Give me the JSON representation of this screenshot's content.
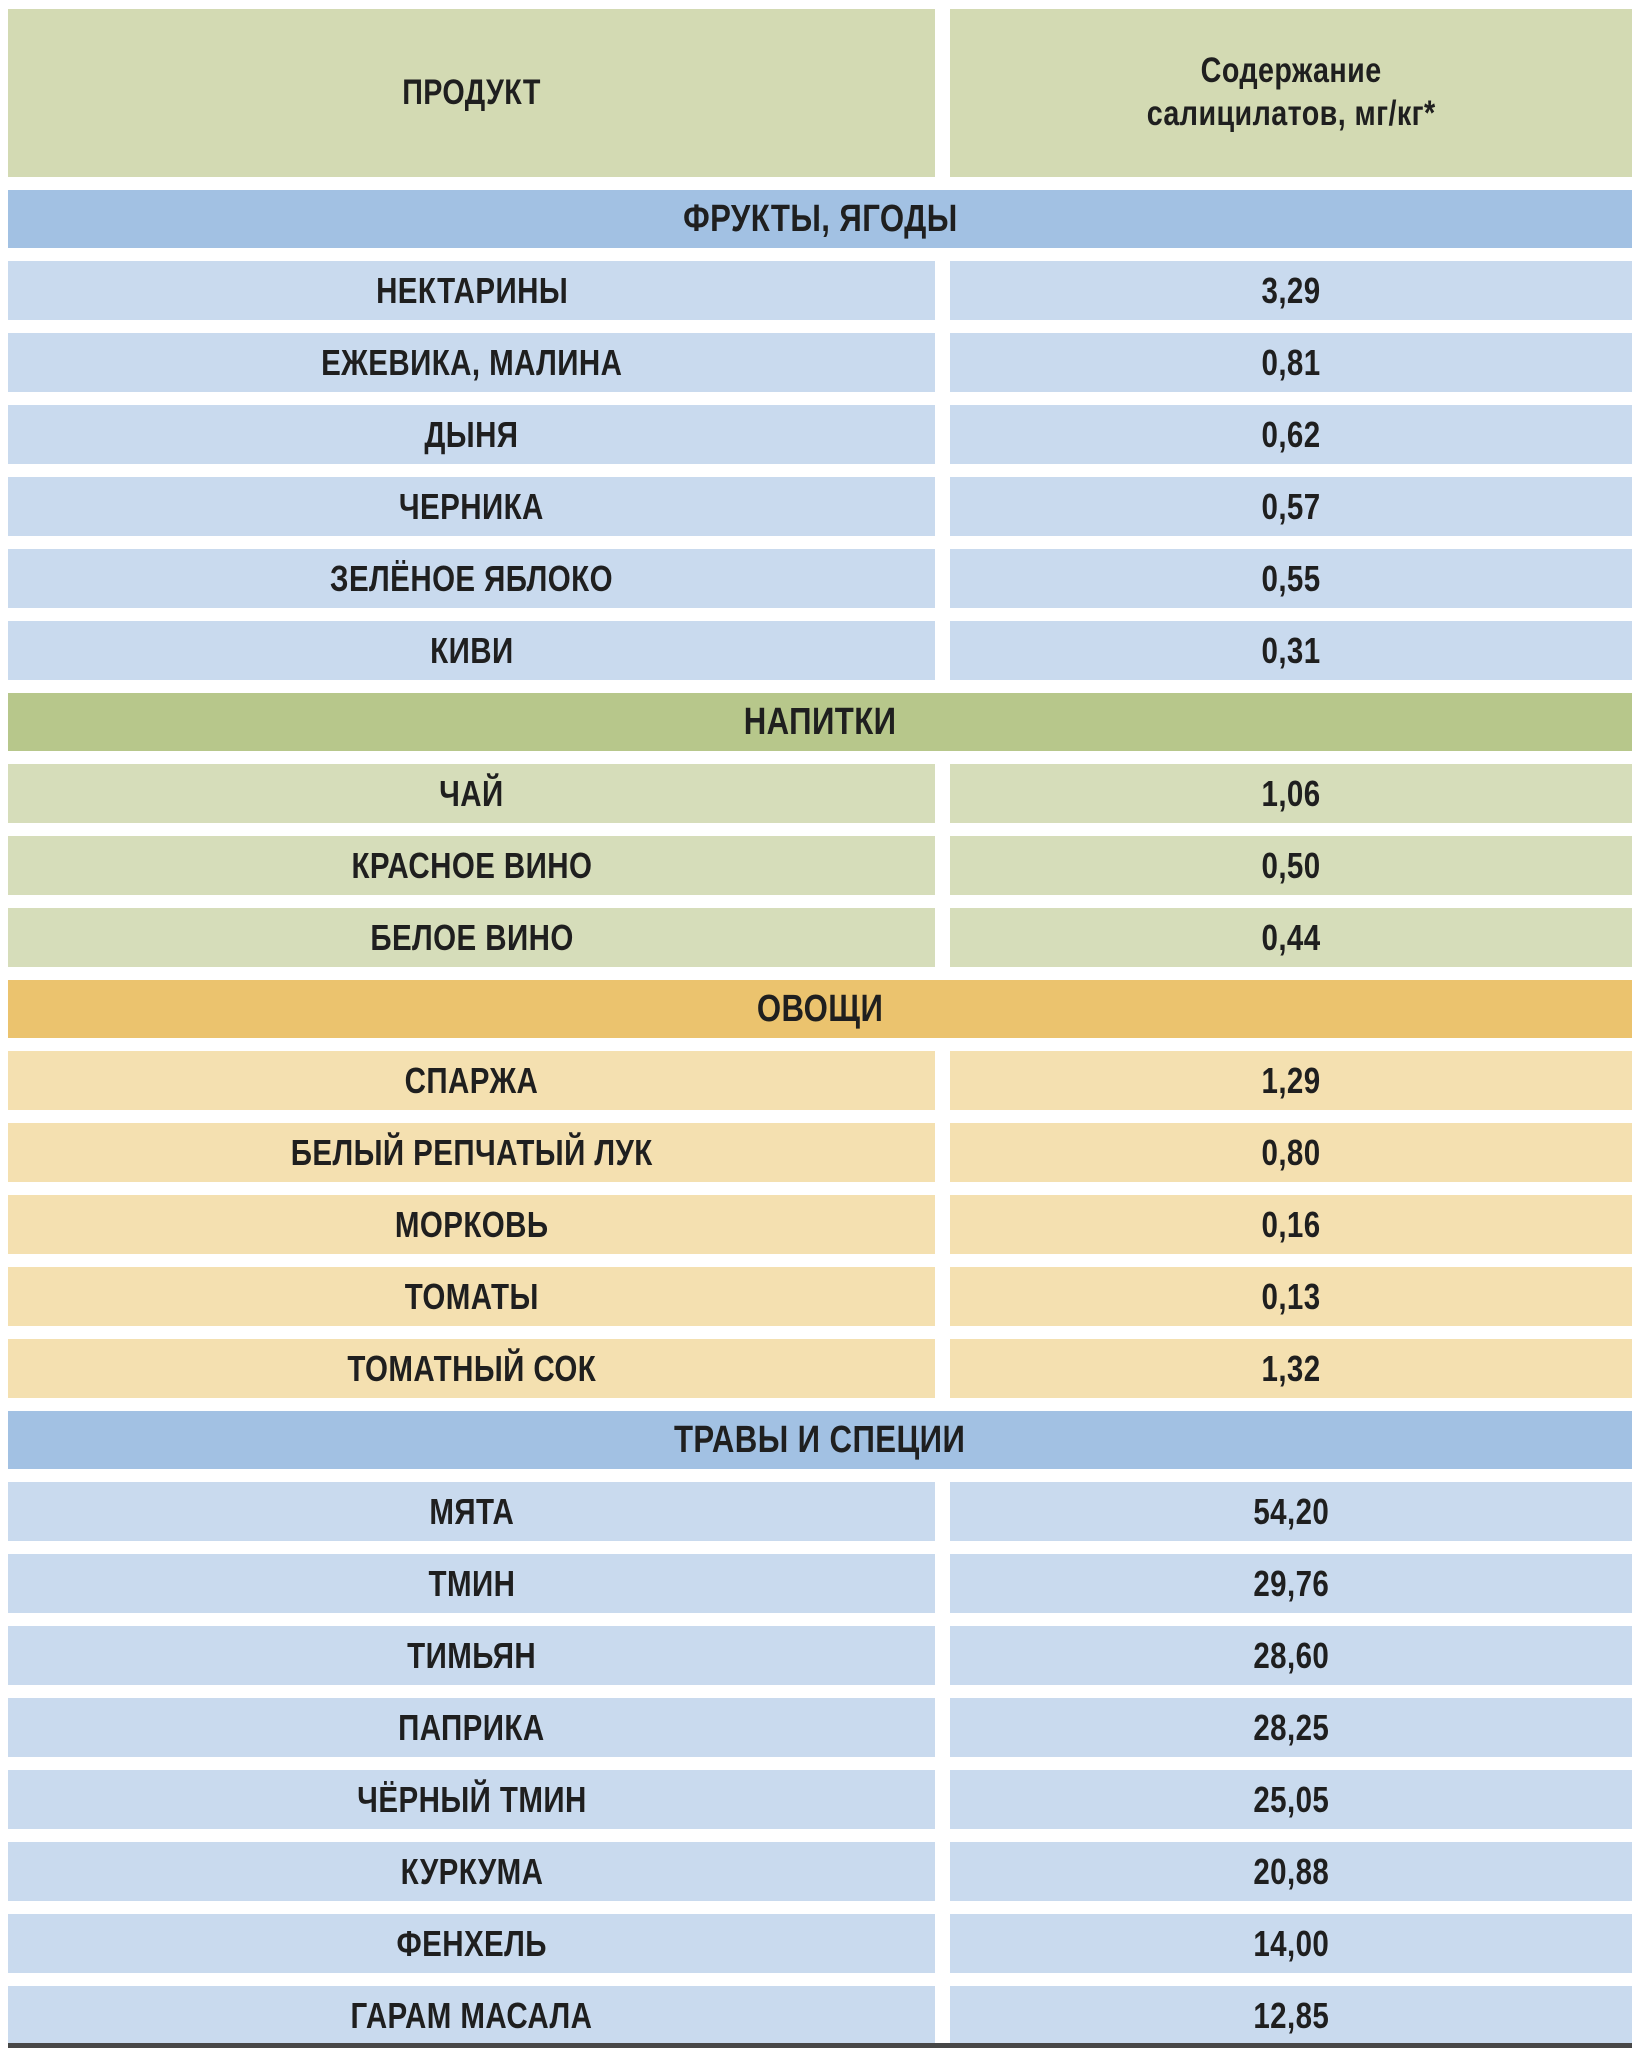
{
  "colors": {
    "page_background": "#ffffff",
    "head_bg": "#d3dab3",
    "text": "#1f1f1f",
    "bottom_strip": "#474747",
    "themes": {
      "blue": {
        "header": "#a2c1e3",
        "row": "#c9daee"
      },
      "green": {
        "header": "#b7c78b",
        "row": "#d6ddba"
      },
      "orange": {
        "header": "#ebc36e",
        "row": "#f4e0b0"
      }
    }
  },
  "chart_data": {
    "type": "table",
    "columns": {
      "product": "ПРОДУКТ",
      "value": "Содержание\nсалицилатов, мг/кг*"
    },
    "sections": [
      {
        "title": "ФРУКТЫ, ЯГОДЫ",
        "theme": "blue",
        "rows": [
          {
            "product": "НЕКТАРИНЫ",
            "value": "3,29"
          },
          {
            "product": "ЕЖЕВИКА, МАЛИНА",
            "value": "0,81"
          },
          {
            "product": "ДЫНЯ",
            "value": "0,62"
          },
          {
            "product": "ЧЕРНИКА",
            "value": "0,57"
          },
          {
            "product": "ЗЕЛЁНОЕ ЯБЛОКО",
            "value": "0,55"
          },
          {
            "product": "КИВИ",
            "value": "0,31"
          }
        ]
      },
      {
        "title": "НАПИТКИ",
        "theme": "green",
        "rows": [
          {
            "product": "ЧАЙ",
            "value": "1,06"
          },
          {
            "product": "КРАСНОЕ ВИНО",
            "value": "0,50"
          },
          {
            "product": "БЕЛОЕ ВИНО",
            "value": "0,44"
          }
        ]
      },
      {
        "title": "ОВОЩИ",
        "theme": "orange",
        "rows": [
          {
            "product": "СПАРЖА",
            "value": "1,29"
          },
          {
            "product": "БЕЛЫЙ РЕПЧАТЫЙ ЛУК",
            "value": "0,80"
          },
          {
            "product": "МОРКОВЬ",
            "value": "0,16"
          },
          {
            "product": "ТОМАТЫ",
            "value": "0,13"
          },
          {
            "product": "ТОМАТНЫЙ СОК",
            "value": "1,32"
          }
        ]
      },
      {
        "title": "ТРАВЫ И СПЕЦИИ",
        "theme": "blue",
        "rows": [
          {
            "product": "МЯТА",
            "value": "54,20"
          },
          {
            "product": "ТМИН",
            "value": "29,76"
          },
          {
            "product": "ТИМЬЯН",
            "value": "28,60"
          },
          {
            "product": "ПАПРИКА",
            "value": "28,25"
          },
          {
            "product": "ЧЁРНЫЙ ТМИН",
            "value": "25,05"
          },
          {
            "product": "КУРКУМА",
            "value": "20,88"
          },
          {
            "product": "ФЕНХЕЛЬ",
            "value": "14,00"
          },
          {
            "product": "ГАРАМ МАСАЛА",
            "value": "12,85"
          }
        ]
      }
    ]
  }
}
